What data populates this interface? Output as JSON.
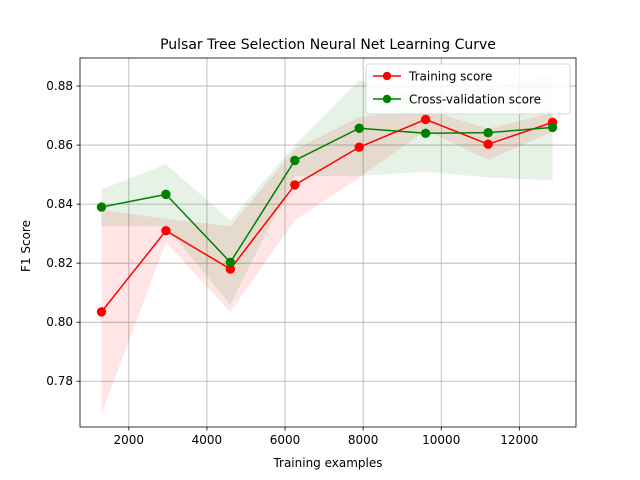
{
  "chart_data": {
    "type": "line",
    "title": "Pulsar Tree Selection Neural Net Learning Curve",
    "xlabel": "Training examples",
    "ylabel": "F1 Score",
    "xlim": [
      750,
      13450
    ],
    "ylim": [
      0.7645,
      0.8895
    ],
    "xticks": [
      2000,
      4000,
      6000,
      8000,
      10000,
      12000
    ],
    "yticks": [
      0.78,
      0.8,
      0.82,
      0.84,
      0.86,
      0.88
    ],
    "xtick_labels": [
      "2000",
      "4000",
      "6000",
      "8000",
      "10000",
      "12000"
    ],
    "ytick_labels": [
      "0.78",
      "0.80",
      "0.82",
      "0.84",
      "0.86",
      "0.88"
    ],
    "grid": true,
    "legend_position": "top-right",
    "x": [
      1300,
      2950,
      4600,
      6250,
      7900,
      9600,
      11200,
      12850
    ],
    "series": [
      {
        "name": "Training score",
        "color": "#ff0000",
        "values": [
          0.8035,
          0.831,
          0.818,
          0.8465,
          0.8593,
          0.8687,
          0.8603,
          0.8677
        ],
        "upper": [
          0.838,
          0.835,
          0.8325,
          0.8585,
          0.8695,
          0.872,
          0.8655,
          0.871
        ],
        "lower": [
          0.769,
          0.827,
          0.8035,
          0.8345,
          0.849,
          0.865,
          0.855,
          0.8645
        ]
      },
      {
        "name": "Cross-validation score",
        "color": "#008000",
        "values": [
          0.839,
          0.8433,
          0.8203,
          0.8548,
          0.8657,
          0.864,
          0.8642,
          0.866
        ],
        "upper": [
          0.845,
          0.8535,
          0.8345,
          0.86,
          0.882,
          0.877,
          0.8795,
          0.884
        ],
        "lower": [
          0.8325,
          0.8325,
          0.806,
          0.8495,
          0.8495,
          0.851,
          0.849,
          0.848
        ]
      }
    ]
  }
}
